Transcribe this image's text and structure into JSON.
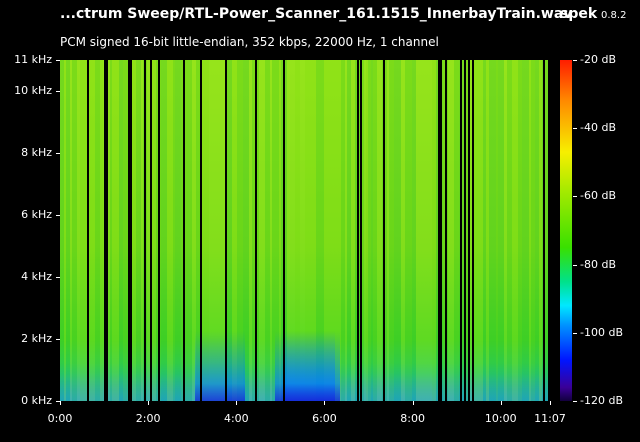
{
  "header": {
    "title": "...ctrum Sweep/RTL-Power_Scanner_161.1515_InnerbayTrain.wav",
    "app_name": "spek",
    "app_version": "0.8.2",
    "format_info": "PCM signed 16-bit little-endian, 352 kbps, 22000 Hz, 1 channel"
  },
  "frequency_axis": {
    "ticks": [
      {
        "label": "11 kHz",
        "value": 11
      },
      {
        "label": "10 kHz",
        "value": 10
      },
      {
        "label": "8 kHz",
        "value": 8
      },
      {
        "label": "6 kHz",
        "value": 6
      },
      {
        "label": "4 kHz",
        "value": 4
      },
      {
        "label": "2 kHz",
        "value": 2
      },
      {
        "label": "0 kHz",
        "value": 0
      }
    ],
    "max_khz": 11
  },
  "time_axis": {
    "ticks": [
      {
        "label": "0:00",
        "seconds": 0
      },
      {
        "label": "2:00",
        "seconds": 120
      },
      {
        "label": "4:00",
        "seconds": 240
      },
      {
        "label": "6:00",
        "seconds": 360
      },
      {
        "label": "8:00",
        "seconds": 480
      },
      {
        "label": "10:00",
        "seconds": 600
      },
      {
        "label": "11:07",
        "seconds": 667
      }
    ],
    "duration_seconds": 667
  },
  "colorbar": {
    "ticks": [
      {
        "label": "-20 dB",
        "value": -20
      },
      {
        "label": "-40 dB",
        "value": -40
      },
      {
        "label": "-60 dB",
        "value": -60
      },
      {
        "label": "-80 dB",
        "value": -80
      },
      {
        "label": "-100 dB",
        "value": -100
      },
      {
        "label": "-120 dB",
        "value": -120
      }
    ],
    "min_db": -120,
    "max_db": -20
  },
  "silent_gaps_seconds": [
    37,
    60,
    63,
    92,
    95,
    115,
    123,
    134,
    168,
    190,
    225,
    265,
    303,
    404,
    409,
    440,
    514,
    517,
    524,
    545,
    550,
    555,
    561,
    658,
    664
  ],
  "colors": {
    "background": "#000000",
    "spectrum_bright": "#8fe11a",
    "spectrum_mid": "#3fd325",
    "spectrum_low": "#2a9be0"
  }
}
